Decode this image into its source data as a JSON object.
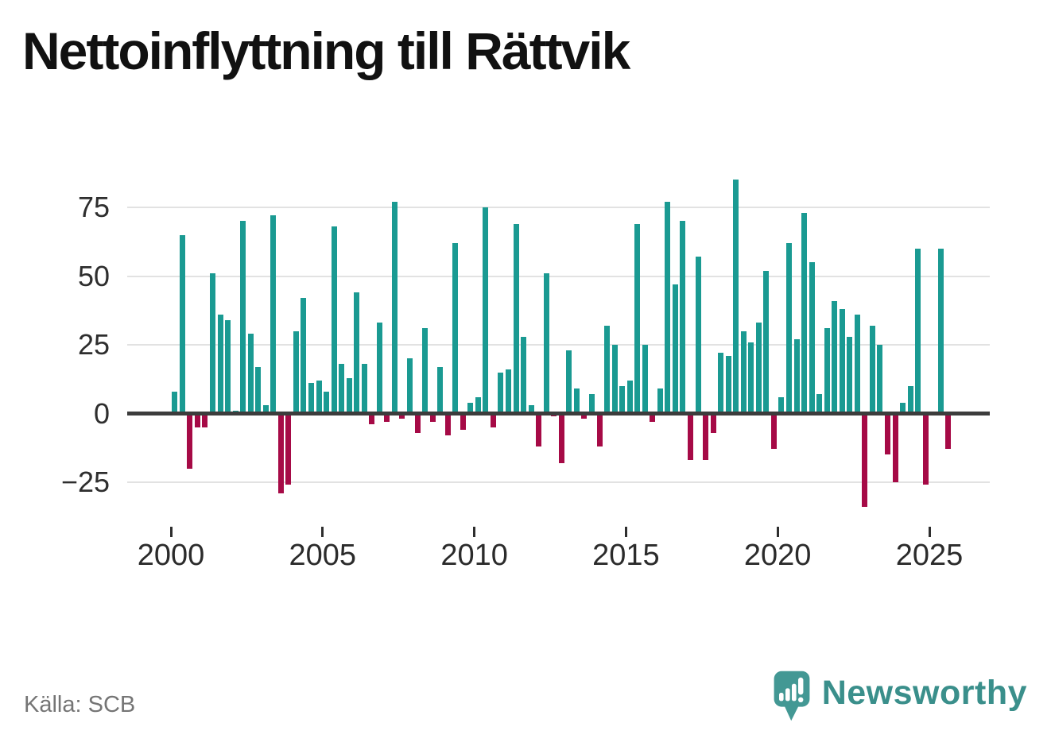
{
  "title": "Nettoinflyttning till Rättvik",
  "source": "Källa: SCB",
  "branding": {
    "logo_text": "Newsworthy",
    "logo_icon": "speech-bubble-with-bar-chart-and-exclamation",
    "logo_color": "#439894",
    "logo_text_color": "#3a8f8b"
  },
  "colors": {
    "positive_bar": "#1a9a92",
    "negative_bar": "#a60a46",
    "zero_line": "#3c3c3c",
    "gridline": "#e2e2e2",
    "axis_text": "#2e2e2e",
    "title_text": "#111111",
    "source_text": "#757575",
    "background": "#ffffff"
  },
  "chart_data": {
    "type": "bar",
    "title": "Nettoinflyttning till Rättvik",
    "frequency": "quarterly",
    "x_start": "2000Q1",
    "x_end": "2025Q3",
    "values": [
      8,
      65,
      -20,
      -5,
      -5,
      51,
      36,
      34,
      1,
      70,
      29,
      17,
      3,
      72,
      -29,
      -26,
      30,
      42,
      11,
      12,
      8,
      68,
      18,
      13,
      44,
      18,
      -4,
      33,
      -3,
      77,
      -2,
      20,
      -7,
      31,
      -3,
      17,
      -8,
      62,
      -6,
      4,
      6,
      75,
      -5,
      15,
      16,
      69,
      28,
      3,
      -12,
      51,
      -1,
      -18,
      23,
      9,
      -2,
      7,
      -12,
      32,
      25,
      10,
      12,
      69,
      25,
      -3,
      9,
      77,
      47,
      70,
      -17,
      57,
      -17,
      -7,
      22,
      21,
      85,
      30,
      26,
      33,
      52,
      -13,
      6,
      62,
      27,
      73,
      55,
      7,
      31,
      41,
      38,
      28,
      36,
      -34,
      32,
      25,
      -15,
      -25,
      4,
      10,
      60,
      -26,
      0,
      60,
      -13
    ],
    "x_tick_years": [
      2000,
      2005,
      2010,
      2015,
      2020,
      2025
    ],
    "x_tick_labels": [
      "2000",
      "2005",
      "2010",
      "2015",
      "2020",
      "2025"
    ],
    "y_ticks": [
      {
        "label": "75",
        "value": 75
      },
      {
        "label": "50",
        "value": 50
      },
      {
        "label": "25",
        "value": 25
      },
      {
        "label": "0",
        "value": 0
      },
      {
        "label": "−25",
        "value": -25
      }
    ],
    "ylim": [
      -40,
      90
    ],
    "grid": true,
    "legend": "none"
  }
}
